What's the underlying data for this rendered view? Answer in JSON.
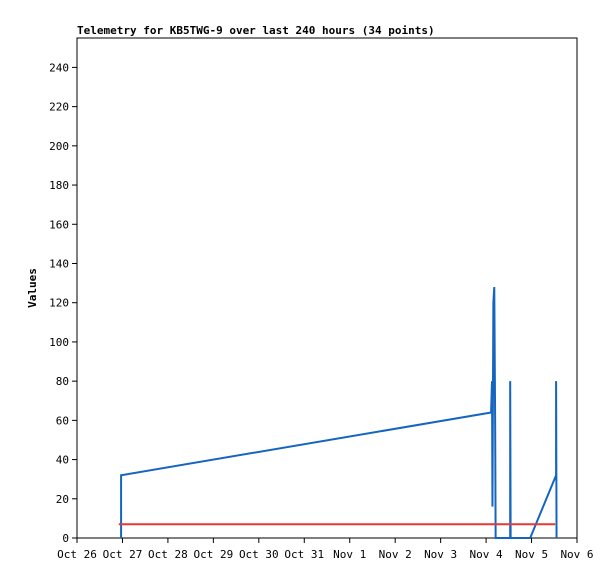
{
  "chart_data": {
    "type": "line",
    "title": "Telemetry for KB5TWG-9 over last 240 hours (34 points)",
    "y_label": "Values",
    "xlim": [
      0,
      11
    ],
    "xticks": [
      {
        "value": 0,
        "label": "Oct 26"
      },
      {
        "value": 1,
        "label": "Oct 27"
      },
      {
        "value": 2,
        "label": "Oct 28"
      },
      {
        "value": 3,
        "label": "Oct 29"
      },
      {
        "value": 4,
        "label": "Oct 30"
      },
      {
        "value": 5,
        "label": "Oct 31"
      },
      {
        "value": 6,
        "label": "Nov 1"
      },
      {
        "value": 7,
        "label": "Nov 2"
      },
      {
        "value": 8,
        "label": "Nov 3"
      },
      {
        "value": 9,
        "label": "Nov 4"
      },
      {
        "value": 10,
        "label": "Nov 5"
      },
      {
        "value": 11,
        "label": "Nov 6"
      }
    ],
    "ylim": [
      0,
      255
    ],
    "yticks": [
      0,
      20,
      40,
      60,
      80,
      100,
      120,
      140,
      160,
      180,
      200,
      220,
      240
    ],
    "series": [
      {
        "color": "#1565c0",
        "x": [
          0.97,
          0.97,
          9.11,
          9.13,
          9.14,
          9.16,
          9.18,
          9.2,
          9.21,
          9.22,
          9.53,
          9.53,
          9.54,
          9.97,
          10.54,
          10.54,
          10.55
        ],
        "values": [
          0,
          32,
          64,
          80,
          16,
          120,
          128,
          56,
          0,
          0,
          0,
          80,
          0,
          0,
          32,
          80,
          0
        ]
      },
      {
        "color": "#e53935",
        "x": [
          0.92,
          10.52
        ],
        "values": [
          7,
          7
        ]
      }
    ]
  }
}
